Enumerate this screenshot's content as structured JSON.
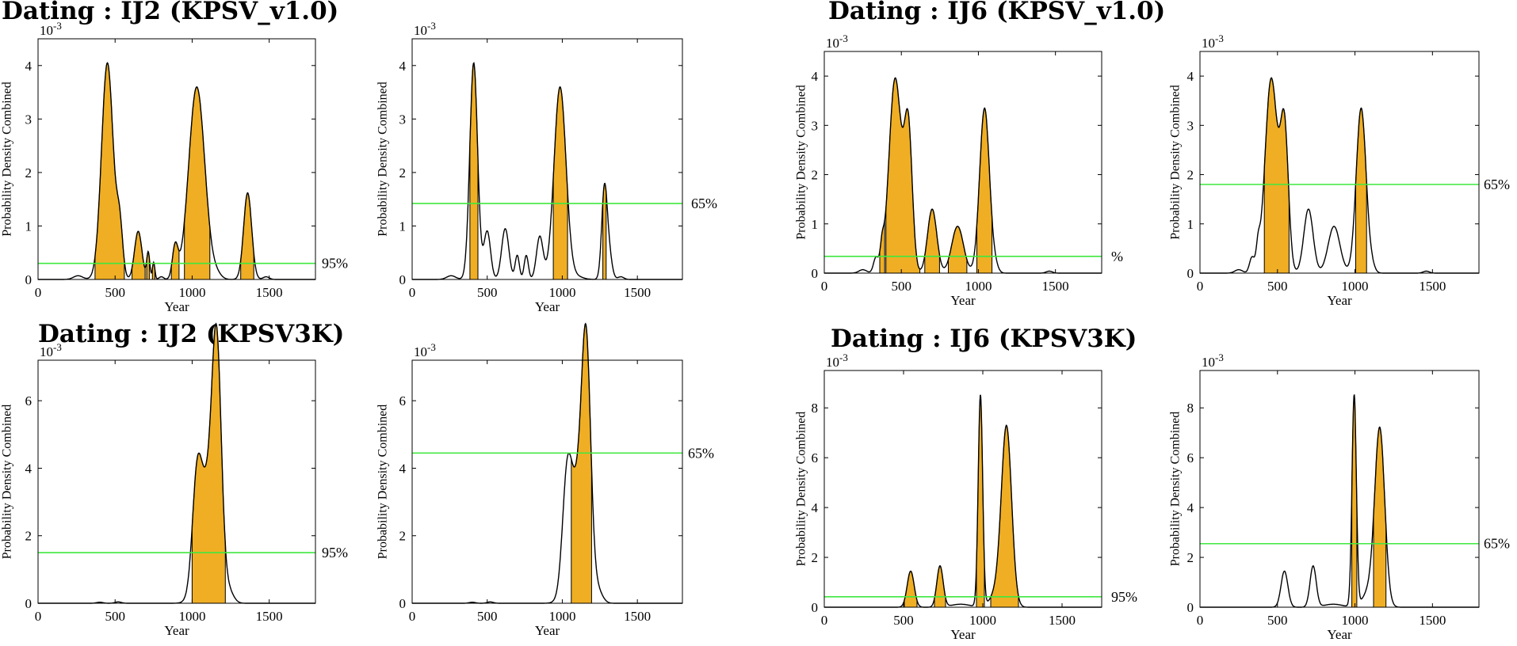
{
  "headings": [
    "Dating : IJ2 (KPSV_v1.0)",
    "Dating : IJ6 (KPSV_v1.0)",
    "Dating : IJ2 (KPSV3K)",
    "Dating : IJ6 (KPSV3K)"
  ],
  "colors": {
    "fill": "#EFAE24",
    "threshold": "#3FE83F",
    "curve": "#000000"
  },
  "chart_data": [
    {
      "type": "area",
      "title": "Dating : IJ2 (KPSV_v1.0)",
      "xlabel": "Year",
      "ylabel": "Probability Density Combined",
      "exponent": "10-3",
      "xlim": [
        0,
        1800
      ],
      "ylim": [
        0,
        4.5
      ],
      "xticks": [
        "0",
        "500",
        "1000",
        "1500"
      ],
      "yticks": [
        "0",
        "1",
        "2",
        "3",
        "4"
      ],
      "threshold": 0.3,
      "threshold_label": "95%",
      "peaks": [
        [
          260,
          0.07,
          30
        ],
        [
          450,
          4.05,
          38
        ],
        [
          530,
          0.9,
          20
        ],
        [
          650,
          0.9,
          24
        ],
        [
          715,
          0.5,
          10
        ],
        [
          750,
          0.32,
          8
        ],
        [
          800,
          0.05,
          15
        ],
        [
          890,
          0.6,
          18
        ],
        [
          1030,
          3.6,
          52
        ],
        [
          1160,
          0.08,
          30
        ],
        [
          1360,
          1.62,
          26
        ],
        [
          1480,
          0.05,
          20
        ]
      ],
      "shaded": [
        [
          370,
          560
        ],
        [
          610,
          695
        ],
        [
          705,
          722
        ],
        [
          742,
          758
        ],
        [
          865,
          915
        ],
        [
          950,
          1115
        ],
        [
          1315,
          1400
        ]
      ]
    },
    {
      "type": "area",
      "title": "",
      "xlabel": "Year",
      "ylabel": "Probability Density Combined",
      "exponent": "10-3",
      "xlim": [
        0,
        1800
      ],
      "ylim": [
        0,
        4.5
      ],
      "xticks": [
        "0",
        "500",
        "1000",
        "1500"
      ],
      "yticks": [
        "0",
        "1",
        "2",
        "3",
        "4"
      ],
      "threshold": 1.42,
      "threshold_label": "65%",
      "peaks": [
        [
          260,
          0.07,
          30
        ],
        [
          410,
          4.05,
          26
        ],
        [
          500,
          0.9,
          22
        ],
        [
          620,
          0.95,
          24
        ],
        [
          700,
          0.45,
          14
        ],
        [
          760,
          0.45,
          14
        ],
        [
          850,
          0.8,
          22
        ],
        [
          985,
          3.6,
          40
        ],
        [
          1100,
          0.05,
          40
        ],
        [
          1280,
          1.62,
          18
        ],
        [
          1310,
          0.5,
          20
        ],
        [
          1390,
          0.05,
          20
        ]
      ],
      "shaded": [
        [
          385,
          438
        ],
        [
          940,
          1035
        ],
        [
          1270,
          1292
        ]
      ]
    },
    {
      "type": "area",
      "title": "Dating : IJ6 (KPSV_v1.0)",
      "xlabel": "Year",
      "ylabel": "Probability Density Combined",
      "exponent": "10-3",
      "xlim": [
        0,
        1800
      ],
      "ylim": [
        0,
        4.5
      ],
      "xticks": [
        "0",
        "500",
        "1000",
        "1500"
      ],
      "yticks": [
        "0",
        "1",
        "2",
        "3",
        "4"
      ],
      "threshold": 0.34,
      "threshold_label": "%",
      "peaks": [
        [
          250,
          0.07,
          25
        ],
        [
          335,
          0.3,
          16
        ],
        [
          375,
          0.4,
          12
        ],
        [
          460,
          3.95,
          40
        ],
        [
          545,
          2.85,
          26
        ],
        [
          700,
          1.3,
          30
        ],
        [
          865,
          0.95,
          38
        ],
        [
          1040,
          3.35,
          32
        ],
        [
          1110,
          0.1,
          20
        ],
        [
          1460,
          0.04,
          20
        ]
      ],
      "shaded": [
        [
          360,
          392
        ],
        [
          400,
          620
        ],
        [
          652,
          748
        ],
        [
          805,
          925
        ],
        [
          990,
          1088
        ]
      ]
    },
    {
      "type": "area",
      "title": "",
      "xlabel": "Year",
      "ylabel": "Probability Density Combined",
      "exponent": "10-3",
      "xlim": [
        0,
        1800
      ],
      "ylim": [
        0,
        4.5
      ],
      "xticks": [
        "0",
        "500",
        "1000",
        "1500"
      ],
      "yticks": [
        "0",
        "1",
        "2",
        "3",
        "4"
      ],
      "threshold": 1.8,
      "threshold_label": "65%",
      "peaks": [
        [
          250,
          0.07,
          25
        ],
        [
          335,
          0.3,
          16
        ],
        [
          375,
          0.4,
          12
        ],
        [
          460,
          3.95,
          40
        ],
        [
          545,
          2.85,
          26
        ],
        [
          700,
          1.3,
          30
        ],
        [
          865,
          0.95,
          38
        ],
        [
          1040,
          3.35,
          32
        ],
        [
          1110,
          0.1,
          20
        ],
        [
          1460,
          0.04,
          20
        ]
      ],
      "shaded": [
        [
          415,
          575
        ],
        [
          1005,
          1075
        ]
      ]
    },
    {
      "type": "area",
      "title": "Dating : IJ2 (KPSV3K)",
      "xlabel": "Year",
      "ylabel": "Probability Density Combined",
      "exponent": "10-3",
      "xlim": [
        0,
        1800
      ],
      "ylim": [
        0,
        7.2
      ],
      "xticks": [
        "0",
        "500",
        "1000",
        "1500"
      ],
      "yticks": [
        "0",
        "2",
        "4",
        "6"
      ],
      "threshold": 1.5,
      "threshold_label": "95%",
      "peaks": [
        [
          400,
          0.03,
          20
        ],
        [
          520,
          0.04,
          20
        ],
        [
          1030,
          2.7,
          30
        ],
        [
          1100,
          3.4,
          55
        ],
        [
          1160,
          6.3,
          30
        ],
        [
          1240,
          0.3,
          30
        ]
      ],
      "shaded": [
        [
          1000,
          1215
        ]
      ]
    },
    {
      "type": "area",
      "title": "",
      "xlabel": "Year",
      "ylabel": "Probability Density Combined",
      "exponent": "10-3",
      "xlim": [
        0,
        1800
      ],
      "ylim": [
        0,
        7.2
      ],
      "xticks": [
        "0",
        "500",
        "1000",
        "1500"
      ],
      "yticks": [
        "0",
        "2",
        "4",
        "6"
      ],
      "threshold": 4.45,
      "threshold_label": "65%",
      "peaks": [
        [
          400,
          0.03,
          20
        ],
        [
          520,
          0.04,
          20
        ],
        [
          1030,
          2.7,
          30
        ],
        [
          1100,
          3.4,
          55
        ],
        [
          1160,
          6.3,
          30
        ],
        [
          1240,
          0.3,
          30
        ]
      ],
      "shaded": [
        [
          1060,
          1195
        ]
      ]
    },
    {
      "type": "area",
      "title": "Dating : IJ6 (KPSV3K)",
      "xlabel": "Year",
      "ylabel": "Probability Density Combined",
      "exponent": "10-3",
      "xlim": [
        0,
        1750
      ],
      "ylim": [
        0,
        9.5
      ],
      "xticks": [
        "0",
        "500",
        "1000",
        "1500"
      ],
      "yticks": [
        "0",
        "2",
        "4",
        "6",
        "8"
      ],
      "threshold": 0.42,
      "threshold_label": "95%",
      "peaks": [
        [
          545,
          1.45,
          22
        ],
        [
          730,
          1.65,
          20
        ],
        [
          860,
          0.12,
          60
        ],
        [
          985,
          8.5,
          14
        ],
        [
          1090,
          0.6,
          40
        ],
        [
          1150,
          7.1,
          32
        ]
      ],
      "shaded": [
        [
          505,
          585
        ],
        [
          695,
          765
        ],
        [
          960,
          1010
        ],
        [
          1050,
          1225
        ]
      ]
    },
    {
      "type": "area",
      "title": "",
      "xlabel": "Year",
      "ylabel": "Probability Density Combined",
      "exponent": "10-3",
      "xlim": [
        0,
        1800
      ],
      "ylim": [
        0,
        9.5
      ],
      "xticks": [
        "0",
        "500",
        "1000",
        "1500"
      ],
      "yticks": [
        "0",
        "2",
        "4",
        "6",
        "8"
      ],
      "threshold": 2.55,
      "threshold_label": "65%",
      "peaks": [
        [
          545,
          1.45,
          22
        ],
        [
          730,
          1.65,
          20
        ],
        [
          860,
          0.12,
          60
        ],
        [
          995,
          8.5,
          14
        ],
        [
          1090,
          0.6,
          40
        ],
        [
          1160,
          7.1,
          32
        ]
      ],
      "shaded": [
        [
          980,
          1012
        ],
        [
          1120,
          1200
        ]
      ]
    }
  ]
}
